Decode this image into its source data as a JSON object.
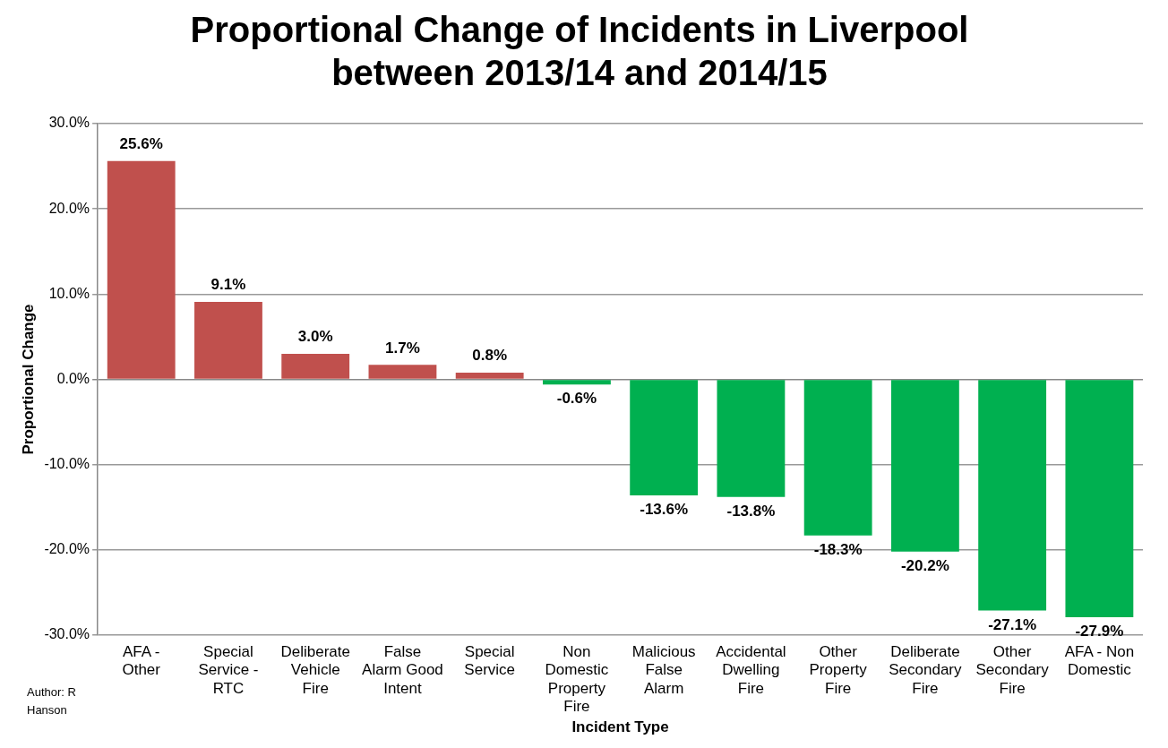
{
  "chart_data": {
    "type": "bar",
    "title": "Proportional Change of Incidents in Liverpool between 2013/14 and 2014/15",
    "xlabel": "Incident Type",
    "ylabel": "Proportional Change",
    "categories": [
      "AFA - Other",
      "Special Service - RTC",
      "Deliberate Vehicle Fire",
      "False Alarm Good Intent",
      "Special Service",
      "Non Domestic Property Fire",
      "Malicious False Alarm",
      "Accidental Dwelling Fire",
      "Other Property Fire",
      "Deliberate Secondary Fire",
      "Other Secondary Fire",
      "AFA - Non Domestic"
    ],
    "values": [
      25.6,
      9.1,
      3.0,
      1.7,
      0.8,
      -0.6,
      -13.6,
      -13.8,
      -18.3,
      -20.2,
      -27.1,
      -27.9
    ],
    "value_labels": [
      "25.6%",
      "9.1%",
      "3.0%",
      "1.7%",
      "0.8%",
      "-0.6%",
      "-13.6%",
      "-13.8%",
      "-18.3%",
      "-20.2%",
      "-27.1%",
      "-27.9%"
    ],
    "colors": [
      "#c0504d",
      "#c0504d",
      "#c0504d",
      "#c0504d",
      "#c0504d",
      "#00b050",
      "#00b050",
      "#00b050",
      "#00b050",
      "#00b050",
      "#00b050",
      "#00b050"
    ],
    "ylim": [
      -30,
      30
    ],
    "yticks": [
      {
        "value": -30,
        "label": "-30.0%"
      },
      {
        "value": -20,
        "label": "-20.0%"
      },
      {
        "value": -10,
        "label": "-10.0%"
      },
      {
        "value": 0,
        "label": "0.0%"
      },
      {
        "value": 10,
        "label": "10.0%"
      },
      {
        "value": 20,
        "label": "20.0%"
      },
      {
        "value": 30,
        "label": "30.0%"
      }
    ],
    "grid": "y",
    "legend": false,
    "annotations": [
      "Author: R Hanson"
    ]
  }
}
